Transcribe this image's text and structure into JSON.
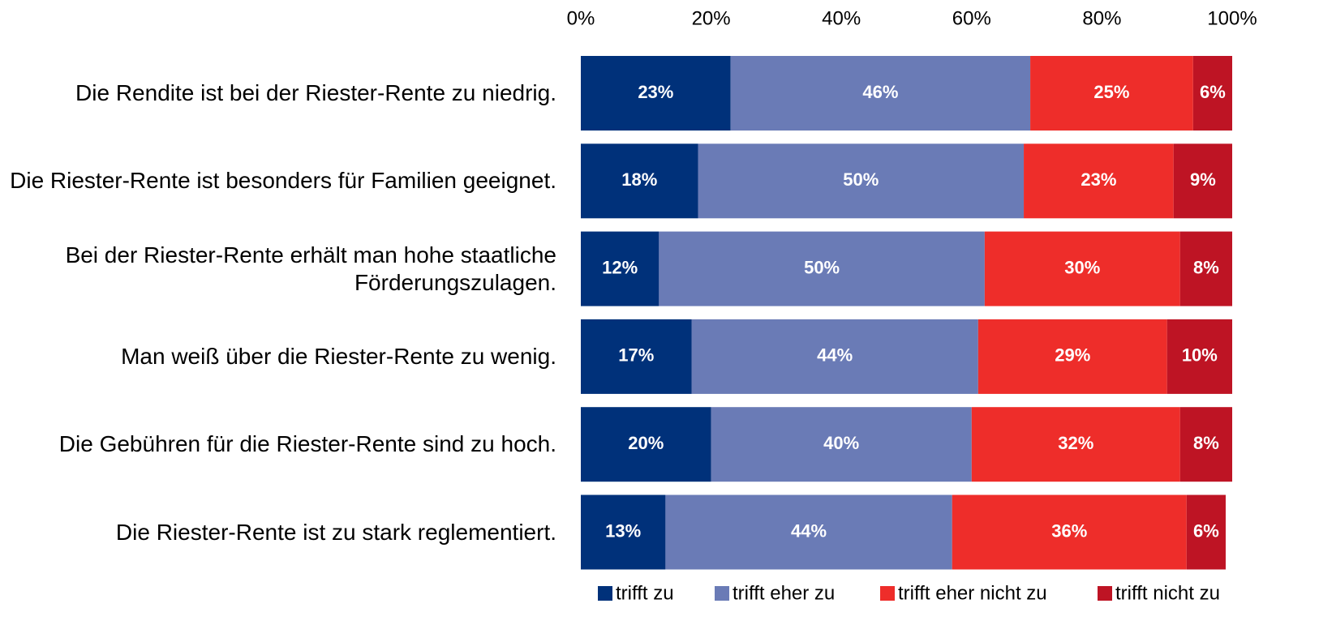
{
  "chart_data": {
    "type": "stacked-barh",
    "categories": [
      "Die Rendite ist bei der Riester-Rente zu niedrig.",
      "Die Riester-Rente ist besonders für Familien geeignet.",
      "Bei der Riester-Rente erhält man hohe staatliche Förderungszulagen.",
      "Man weiß über die Riester-Rente zu wenig.",
      "Die Gebühren für die Riester-Rente sind zu hoch.",
      "Die Riester-Rente ist zu stark reglementiert."
    ],
    "series": [
      {
        "name": "trifft zu",
        "color": "#00317a",
        "values": [
          23,
          18,
          12,
          17,
          20,
          13
        ],
        "value_labels": [
          "23%",
          "18%",
          "12%",
          "17%",
          "20%",
          "13%"
        ]
      },
      {
        "name": "trifft eher zu",
        "color": "#6a7bb6",
        "values": [
          46,
          50,
          50,
          44,
          40,
          44
        ],
        "value_labels": [
          "46%",
          "50%",
          "50%",
          "44%",
          "40%",
          "44%"
        ]
      },
      {
        "name": "trifft eher nicht zu",
        "color": "#ee2d2a",
        "values": [
          25,
          23,
          30,
          29,
          32,
          36
        ],
        "value_labels": [
          "25%",
          "23%",
          "30%",
          "29%",
          "32%",
          "36%"
        ]
      },
      {
        "name": "trifft nicht zu",
        "color": "#be1424",
        "values": [
          6,
          9,
          8,
          10,
          8,
          6
        ],
        "value_labels": [
          "6%",
          "9%",
          "8%",
          "10%",
          "8%",
          "6%"
        ]
      }
    ],
    "xlim": [
      0,
      100
    ],
    "xticks": [
      {
        "value": 0,
        "label": "0%"
      },
      {
        "value": 20,
        "label": "20%"
      },
      {
        "value": 40,
        "label": "40%"
      },
      {
        "value": 60,
        "label": "60%"
      },
      {
        "value": 80,
        "label": "80%"
      },
      {
        "value": 100,
        "label": "100%"
      }
    ],
    "legend": "bottom"
  }
}
